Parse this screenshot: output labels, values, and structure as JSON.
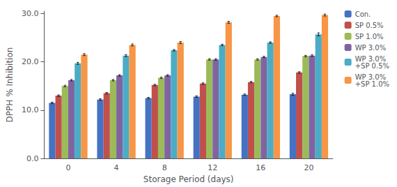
{
  "chart_data": {
    "type": "bar",
    "xlabel": "Storage Period (days)",
    "ylabel": "DPPH % Inhibition",
    "categories": [
      0,
      4,
      8,
      12,
      16,
      20
    ],
    "series": [
      {
        "name": "Con.",
        "color": "#4472C4",
        "values": [
          11.5,
          12.2,
          12.5,
          12.8,
          13.2,
          13.3
        ],
        "errors": [
          0.15,
          0.15,
          0.15,
          0.15,
          0.15,
          0.2
        ]
      },
      {
        "name": "SP 0.5%",
        "color": "#C0504D",
        "values": [
          13.0,
          13.5,
          15.2,
          15.5,
          15.8,
          17.8
        ],
        "errors": [
          0.15,
          0.15,
          0.15,
          0.15,
          0.15,
          0.15
        ]
      },
      {
        "name": "SP 1.0%",
        "color": "#9BBB59",
        "values": [
          15.0,
          16.2,
          16.7,
          20.5,
          20.5,
          21.2
        ],
        "errors": [
          0.15,
          0.15,
          0.15,
          0.15,
          0.15,
          0.15
        ]
      },
      {
        "name": "WP 3.0%",
        "color": "#8064A2",
        "values": [
          16.2,
          17.2,
          17.2,
          20.5,
          21.0,
          21.3
        ],
        "errors": [
          0.15,
          0.15,
          0.15,
          0.15,
          0.15,
          0.15
        ]
      },
      {
        "name": "WP 3.0%\n+SP 0.5%",
        "color": "#4BACC6",
        "values": [
          19.7,
          21.3,
          22.4,
          23.5,
          24.0,
          25.7
        ],
        "errors": [
          0.2,
          0.2,
          0.15,
          0.15,
          0.15,
          0.3
        ]
      },
      {
        "name": "WP 3.0%\n+SP 1.0%",
        "color": "#F79646",
        "values": [
          21.5,
          23.5,
          24.0,
          28.2,
          29.5,
          29.7
        ],
        "errors": [
          0.2,
          0.2,
          0.2,
          0.2,
          0.15,
          0.2
        ]
      }
    ],
    "ylim": [
      0,
      30.5
    ],
    "yticks": [
      {
        "value": 0.0,
        "label": "0.0"
      },
      {
        "value": 10.0,
        "label": "10.0"
      },
      {
        "value": 20.0,
        "label": "20.0"
      },
      {
        "value": 30.0,
        "label": "30.0"
      }
    ],
    "grid": false,
    "legend": "right"
  }
}
